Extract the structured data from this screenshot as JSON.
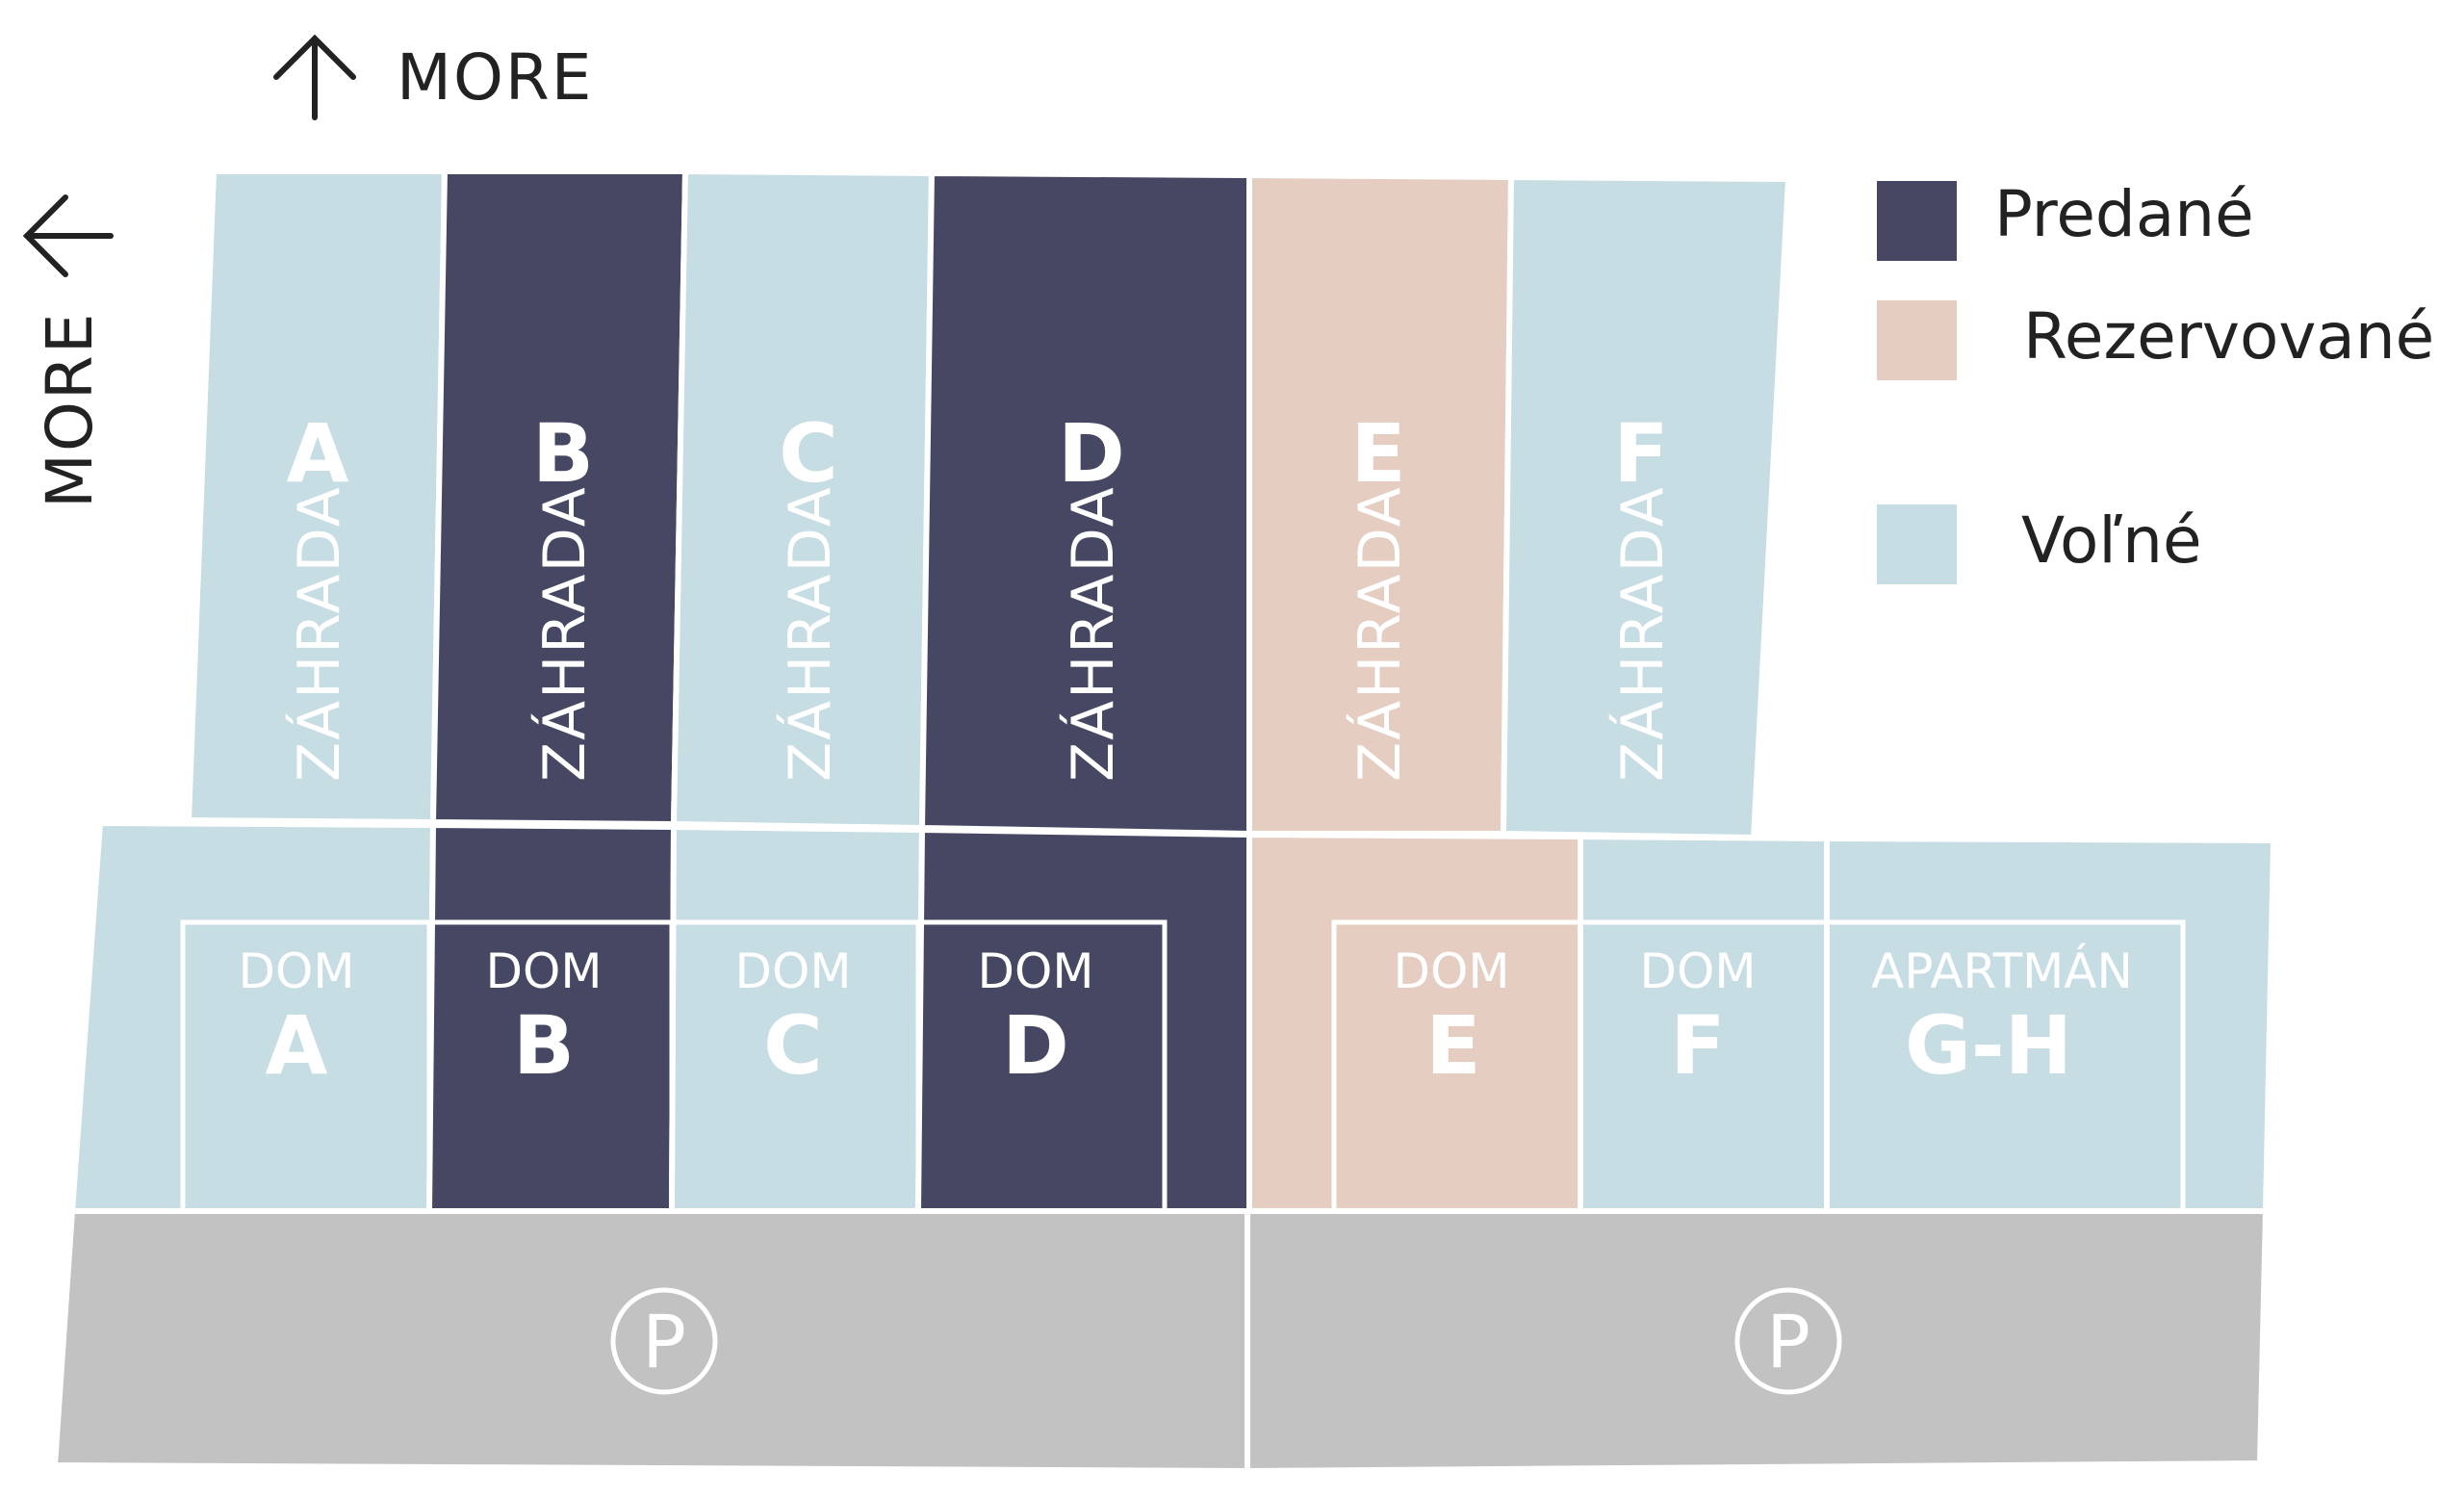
{
  "colors": {
    "sold": "#464863",
    "reserved": "#e6cdc2",
    "free": "#c6dde4",
    "parking": "#c2c2c2",
    "divider": "#ffffff"
  },
  "compass": {
    "north_label": "MORE",
    "west_label": "MORE",
    "north_icon": "arrow-up-icon",
    "west_icon": "arrow-left-icon"
  },
  "legend": {
    "sold_label": "Predané",
    "reserved_label": "Rezervované",
    "free_label": "Voľné"
  },
  "gardens": [
    {
      "letter": "A",
      "label": "ZÁHRADA",
      "status": "free"
    },
    {
      "letter": "B",
      "label": "ZÁHRADA",
      "status": "sold"
    },
    {
      "letter": "C",
      "label": "ZÁHRADA",
      "status": "free"
    },
    {
      "letter": "D",
      "label": "ZÁHRADA",
      "status": "sold"
    },
    {
      "letter": "E",
      "label": "ZÁHRADA",
      "status": "reserved"
    },
    {
      "letter": "F",
      "label": "ZÁHRADA",
      "status": "free"
    }
  ],
  "houses": [
    {
      "type": "DOM",
      "letter": "A",
      "status": "free"
    },
    {
      "type": "DOM",
      "letter": "B",
      "status": "sold"
    },
    {
      "type": "DOM",
      "letter": "C",
      "status": "free"
    },
    {
      "type": "DOM",
      "letter": "D",
      "status": "sold"
    },
    {
      "type": "DOM",
      "letter": "E",
      "status": "reserved"
    },
    {
      "type": "DOM",
      "letter": "F",
      "status": "free"
    },
    {
      "type": "APARTMÁN",
      "letter": "G-H",
      "status": "free"
    }
  ],
  "parking": [
    {
      "symbol": "P",
      "icon": "parking-icon"
    },
    {
      "symbol": "P",
      "icon": "parking-icon"
    }
  ]
}
